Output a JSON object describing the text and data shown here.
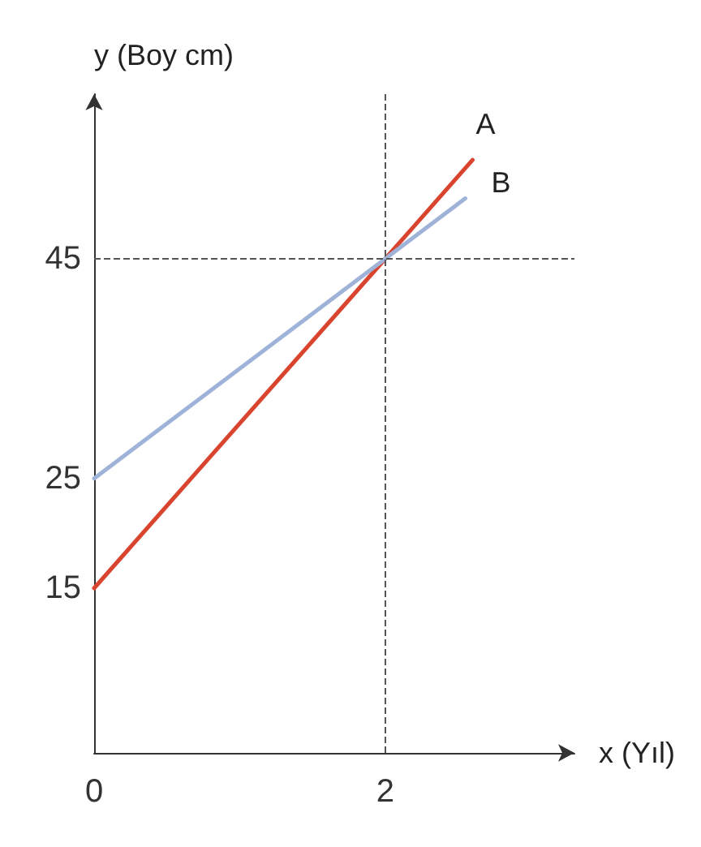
{
  "chart_data": {
    "type": "line",
    "xlabel": "x (Yıl)",
    "ylabel": "y (Boy cm)",
    "xlim": [
      0,
      3.3
    ],
    "xticks": [
      0,
      2
    ],
    "ylim": [
      0,
      60
    ],
    "yticks": [
      15,
      25,
      45
    ],
    "grid": false,
    "legend": false,
    "series": [
      {
        "name": "A",
        "color": "#d9442e",
        "x": [
          0,
          2,
          2.6
        ],
        "values": [
          15,
          45,
          54
        ]
      },
      {
        "name": "B",
        "color": "#9fb2d8",
        "x": [
          0,
          2,
          2.55
        ],
        "values": [
          25,
          45,
          50.5
        ]
      }
    ],
    "ref_lines": [
      {
        "axis": "x",
        "value": 2,
        "line_style": "dashed"
      },
      {
        "axis": "y",
        "value": 45,
        "line_style": "dashed"
      }
    ]
  }
}
